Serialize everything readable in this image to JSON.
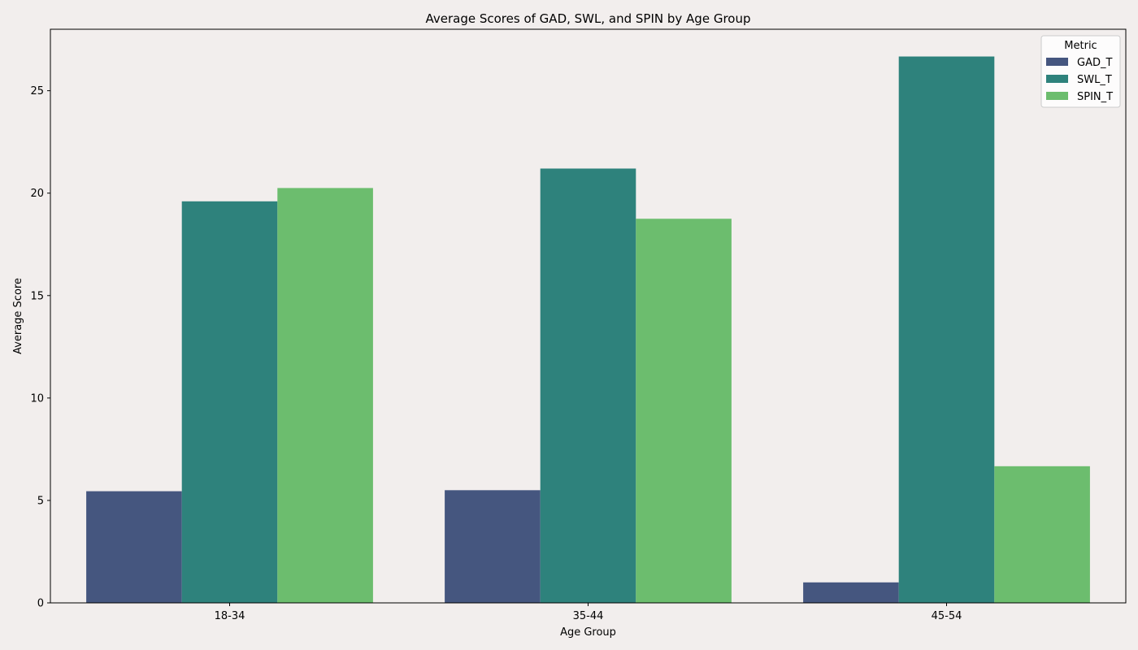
{
  "chart_data": {
    "type": "bar",
    "title": "Average Scores of GAD, SWL, and SPIN by Age Group",
    "xlabel": "Age Group",
    "ylabel": "Average Score",
    "categories": [
      "18-34",
      "35-44",
      "45-54"
    ],
    "series": [
      {
        "name": "GAD_T",
        "color": "#45567f",
        "values": [
          5.45,
          5.5,
          1.0
        ]
      },
      {
        "name": "SWL_T",
        "color": "#2e827c",
        "values": [
          19.6,
          21.2,
          26.67
        ]
      },
      {
        "name": "SPIN_T",
        "color": "#6cbd6e",
        "values": [
          20.25,
          18.75,
          6.67
        ]
      }
    ],
    "ylim": [
      0,
      28
    ],
    "yticks": [
      0,
      5,
      10,
      15,
      20,
      25
    ],
    "grid": false,
    "legend": {
      "title": "Metric",
      "placement": "top-right"
    }
  }
}
